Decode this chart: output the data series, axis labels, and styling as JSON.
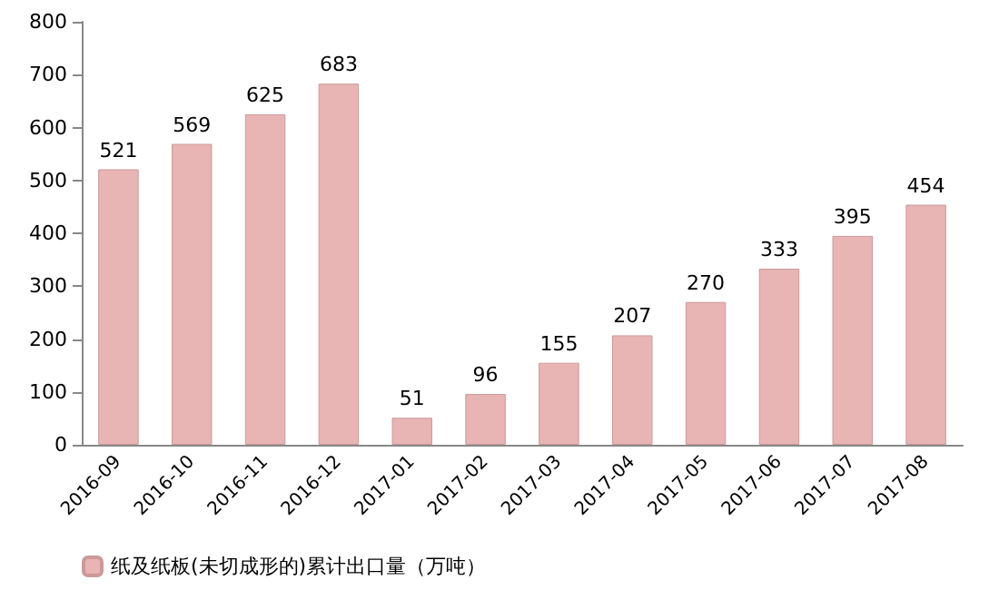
{
  "chart_data": {
    "type": "bar",
    "categories": [
      "2016-09",
      "2016-10",
      "2016-11",
      "2016-12",
      "2017-01",
      "2017-02",
      "2017-03",
      "2017-04",
      "2017-05",
      "2017-06",
      "2017-07",
      "2017-08"
    ],
    "series": [
      {
        "name": "纸及纸板(未切成形的)累计出口量（万吨）",
        "color": "#e8b4b4",
        "values": [
          521,
          569,
          625,
          683,
          51,
          96,
          155,
          207,
          270,
          333,
          395,
          454
        ]
      }
    ],
    "ylim": [
      0,
      800
    ],
    "yticks": [
      0,
      100,
      200,
      300,
      400,
      500,
      600,
      700,
      800
    ],
    "data_labels": true,
    "legend": "bottom left"
  }
}
